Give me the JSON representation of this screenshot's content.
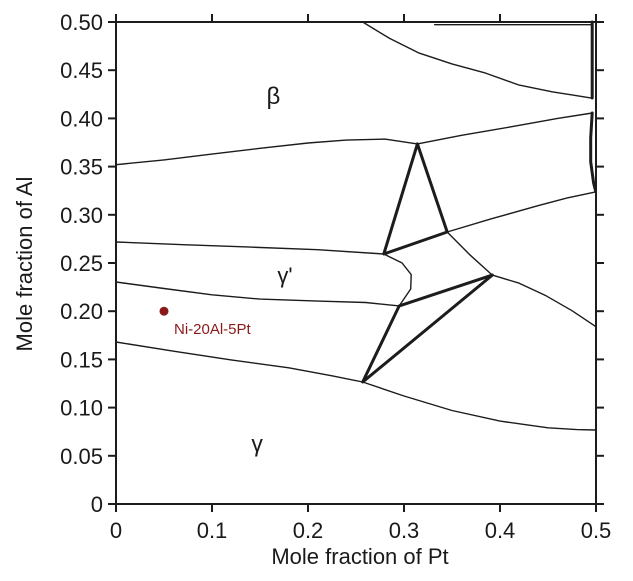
{
  "chart_data": {
    "type": "line",
    "title": "",
    "xlabel": "Mole fraction of Pt",
    "ylabel": "Mole fraction of Al",
    "xlim": [
      0,
      0.5
    ],
    "ylim": [
      0,
      0.5
    ],
    "grid": false,
    "legend": "none",
    "line_color": "#1c1c1c",
    "x_ticks": [
      0,
      0.1,
      0.2,
      0.3,
      0.4,
      0.5
    ],
    "x_tick_labels": [
      "0",
      "0.1",
      "0.2",
      "0.3",
      "0.4",
      "0.5"
    ],
    "y_ticks": [
      0,
      0.05,
      0.1,
      0.15,
      0.2,
      0.25,
      0.3,
      0.35,
      0.4,
      0.45,
      0.5
    ],
    "y_tick_labels": [
      "0",
      "0.05",
      "0.10",
      "0.15",
      "0.20",
      "0.25",
      "0.30",
      "0.35",
      "0.40",
      "0.45",
      "0.50"
    ],
    "phase_labels": [
      {
        "text": "β",
        "x": 0.164,
        "y": 0.424,
        "size": 24
      },
      {
        "text": "γ'",
        "x": 0.176,
        "y": 0.2375,
        "size": 22
      },
      {
        "text": "γ",
        "x": 0.147,
        "y": 0.063,
        "size": 23
      }
    ],
    "annotation": {
      "label": "Ni-20Al-5Pt",
      "x": 0.05,
      "y": 0.2,
      "marker": "filled-circle",
      "marker_radius": 4.5,
      "color": "#8B1A1A"
    },
    "boundaries": [
      {
        "name": "beta-gamma-prime-upper-left",
        "weight": "thin",
        "points": [
          [
            0.0,
            0.352
          ],
          [
            0.05,
            0.357
          ],
          [
            0.1,
            0.363
          ],
          [
            0.15,
            0.369
          ],
          [
            0.2,
            0.3745
          ],
          [
            0.24,
            0.3775
          ],
          [
            0.28,
            0.3785
          ],
          [
            0.314,
            0.3735
          ]
        ]
      },
      {
        "name": "beta-lower-right",
        "weight": "thin",
        "points": [
          [
            0.314,
            0.3735
          ],
          [
            0.36,
            0.3825
          ],
          [
            0.41,
            0.391
          ],
          [
            0.46,
            0.4
          ],
          [
            0.496,
            0.4056
          ]
        ]
      },
      {
        "name": "beta-upper-right",
        "weight": "thin",
        "points": [
          [
            0.257,
            0.5
          ],
          [
            0.285,
            0.483
          ],
          [
            0.315,
            0.468
          ],
          [
            0.35,
            0.4565
          ],
          [
            0.385,
            0.447
          ],
          [
            0.42,
            0.4345
          ],
          [
            0.455,
            0.4275
          ],
          [
            0.48,
            0.4235
          ],
          [
            0.496,
            0.421
          ]
        ]
      },
      {
        "name": "top-edge-boundary",
        "weight": "thin",
        "points": [
          [
            0.332,
            0.4972
          ],
          [
            0.496,
            0.4972
          ]
        ]
      },
      {
        "name": "right-edge-upper",
        "weight": "thick",
        "points": [
          [
            0.496,
            0.5
          ],
          [
            0.496,
            0.4212
          ]
        ]
      },
      {
        "name": "gamma-prime-upper",
        "weight": "thin",
        "points": [
          [
            0.0,
            0.2718
          ],
          [
            0.07,
            0.269
          ],
          [
            0.14,
            0.2665
          ],
          [
            0.21,
            0.2638
          ],
          [
            0.279,
            0.2593
          ]
        ]
      },
      {
        "name": "tie-triangle-upper",
        "weight": "thick",
        "points": [
          [
            0.314,
            0.3735
          ],
          [
            0.279,
            0.2593
          ],
          [
            0.345,
            0.2822
          ],
          [
            0.314,
            0.3735
          ]
        ]
      },
      {
        "name": "mid-right-boundary",
        "weight": "thin",
        "points": [
          [
            0.345,
            0.2822
          ],
          [
            0.39,
            0.2955
          ],
          [
            0.44,
            0.3095
          ],
          [
            0.47,
            0.3175
          ],
          [
            0.499,
            0.3235
          ]
        ]
      },
      {
        "name": "vertex-to-nexus",
        "weight": "thin",
        "points": [
          [
            0.345,
            0.2822
          ],
          [
            0.368,
            0.259
          ],
          [
            0.392,
            0.2375
          ]
        ]
      },
      {
        "name": "right-edge-mid",
        "weight": "thick",
        "points": [
          [
            0.496,
            0.4056
          ],
          [
            0.4945,
            0.38
          ],
          [
            0.4945,
            0.355
          ],
          [
            0.4975,
            0.333
          ],
          [
            0.4995,
            0.325
          ]
        ]
      },
      {
        "name": "gamma-prime-lower",
        "weight": "thin",
        "points": [
          [
            0.0,
            0.2303
          ],
          [
            0.05,
            0.2235
          ],
          [
            0.1,
            0.217
          ],
          [
            0.15,
            0.2125
          ],
          [
            0.21,
            0.2105
          ],
          [
            0.26,
            0.209
          ],
          [
            0.295,
            0.2055
          ]
        ]
      },
      {
        "name": "gamma-prime-right",
        "weight": "thin",
        "points": [
          [
            0.279,
            0.2593
          ],
          [
            0.298,
            0.25
          ],
          [
            0.3075,
            0.238
          ],
          [
            0.307,
            0.223
          ],
          [
            0.295,
            0.2055
          ]
        ]
      },
      {
        "name": "tie-triangle-lower",
        "weight": "thick",
        "points": [
          [
            0.392,
            0.2375
          ],
          [
            0.295,
            0.2055
          ],
          [
            0.257,
            0.1266
          ],
          [
            0.392,
            0.2375
          ]
        ]
      },
      {
        "name": "nexus-to-right-axis",
        "weight": "thin",
        "points": [
          [
            0.392,
            0.2375
          ],
          [
            0.42,
            0.229
          ],
          [
            0.448,
            0.216
          ],
          [
            0.475,
            0.2005
          ],
          [
            0.499,
            0.1845
          ]
        ]
      },
      {
        "name": "gamma-upper-left",
        "weight": "thin",
        "points": [
          [
            0.0,
            0.168
          ],
          [
            0.06,
            0.1585
          ],
          [
            0.12,
            0.1495
          ],
          [
            0.18,
            0.1413
          ],
          [
            0.225,
            0.133
          ],
          [
            0.257,
            0.1266
          ]
        ]
      },
      {
        "name": "gamma-upper-right",
        "weight": "thin",
        "points": [
          [
            0.257,
            0.1266
          ],
          [
            0.3,
            0.112
          ],
          [
            0.35,
            0.097
          ],
          [
            0.4,
            0.086
          ],
          [
            0.45,
            0.079
          ],
          [
            0.48,
            0.0772
          ],
          [
            0.499,
            0.0768
          ]
        ]
      }
    ]
  }
}
